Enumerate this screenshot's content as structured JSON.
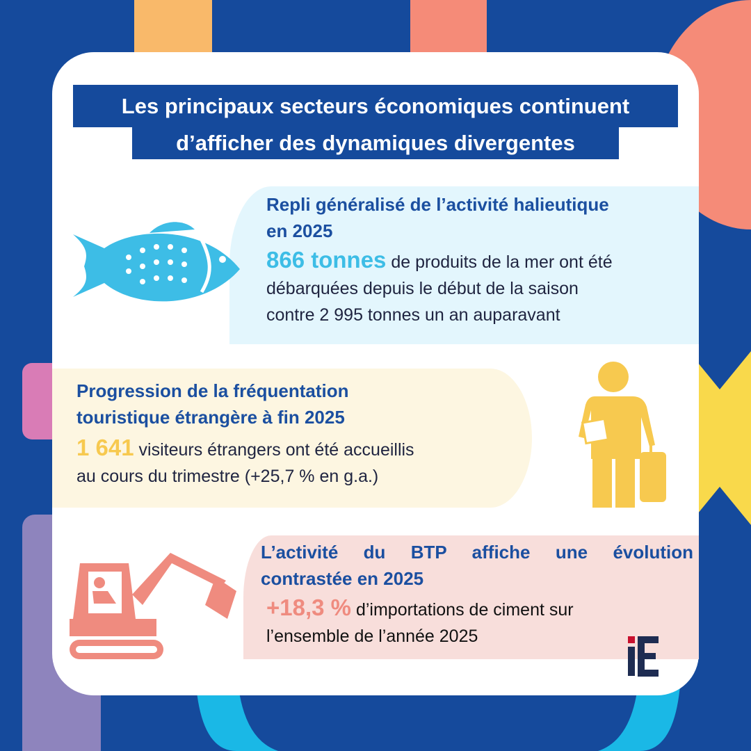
{
  "title": {
    "line1": "Les principaux secteurs économiques continuent",
    "line2": "d’afficher des dynamiques divergentes"
  },
  "sections": [
    {
      "heading_line1": "Repli généralisé de l’activité halieutique",
      "heading_line2": "en 2025",
      "highlight": "866 tonnes",
      "text_line1": " de produits de la mer ont été",
      "text_line2": "débarquées  depuis le début de la saison",
      "text_line3": "contre 2 995 tonnes un an auparavant",
      "icon": "fish-icon",
      "color": "#3dbde6"
    },
    {
      "heading_line1": "Progression de la fréquentation",
      "heading_line2": "touristique étrangère à fin 2025",
      "highlight": "1 641",
      "text_line1": "  visiteurs étrangers ont été accueillis",
      "text_line2": "au cours du trimestre (+25,7 % en g.a.)",
      "icon": "traveler-icon",
      "color": "#f7c94f"
    },
    {
      "heading_line1": "L’activité du BTP affiche une évolution",
      "heading_line2": "contrastée en 2025",
      "highlight": "+18,3 %",
      "text_line1": " d’importations de ciment sur",
      "text_line2": "l’ensemble de l’année 2025",
      "icon": "excavator-icon",
      "color": "#ef8b7f"
    }
  ],
  "logo": "iE"
}
